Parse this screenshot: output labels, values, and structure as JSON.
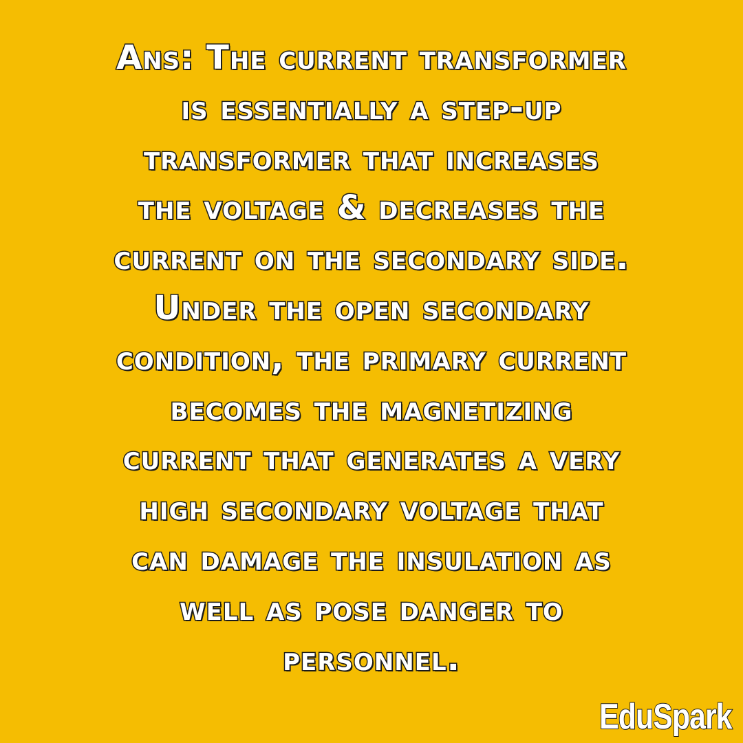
{
  "background_color": "#f5bd02",
  "text_color": "#ffffff",
  "outline_color": "#1a1a1a",
  "answer": {
    "lines": [
      "Ans: The current transformer",
      "is essentially a step-up",
      "transformer that increases",
      "the voltage & decreases the",
      "current on the secondary side.",
      "Under the open secondary",
      "condition, the primary current",
      "becomes the magnetizing",
      "current that generates a very",
      "high secondary voltage that",
      "can damage the insulation as",
      "well as pose danger to",
      "personnel."
    ]
  },
  "watermark": {
    "label": "EduSpark"
  }
}
